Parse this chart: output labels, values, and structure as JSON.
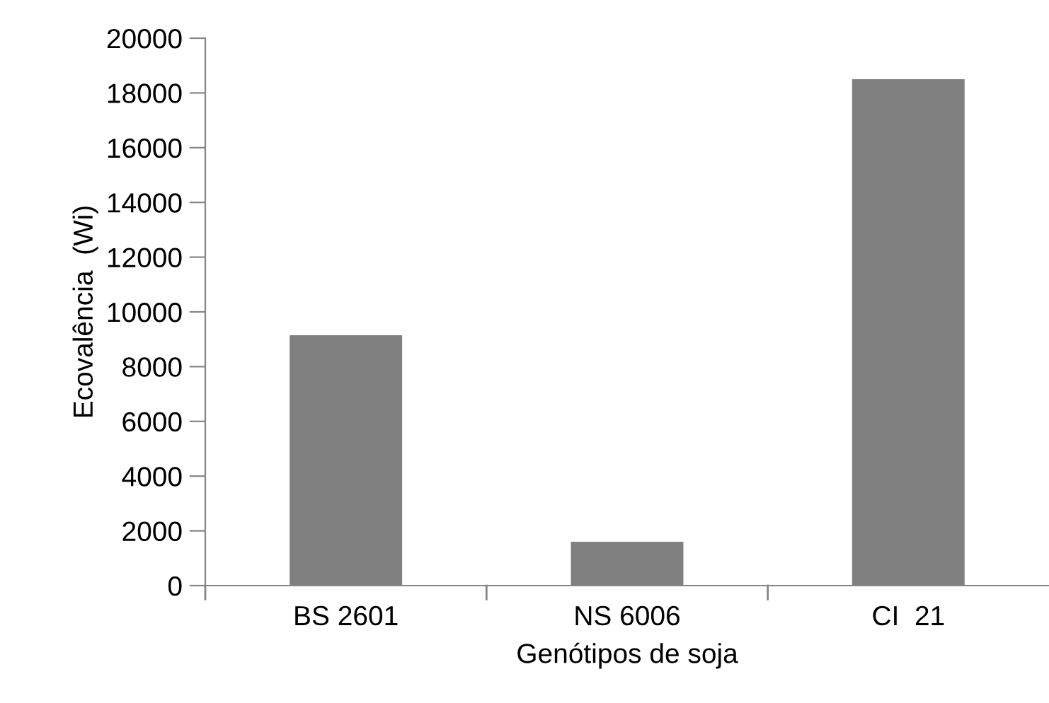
{
  "chart_data": {
    "type": "bar",
    "xlabel": "Genótipos de soja",
    "ylabel": "Ecovalência  (Wi)",
    "categories": [
      "BS 2601",
      "NS 6006",
      "CI  21"
    ],
    "values": [
      9150,
      1600,
      18500
    ],
    "color": "#808080",
    "ylim": [
      0,
      20000
    ],
    "yticks": [
      0,
      2000,
      4000,
      6000,
      8000,
      10000,
      12000,
      14000,
      16000,
      18000,
      20000
    ],
    "grid": false
  }
}
